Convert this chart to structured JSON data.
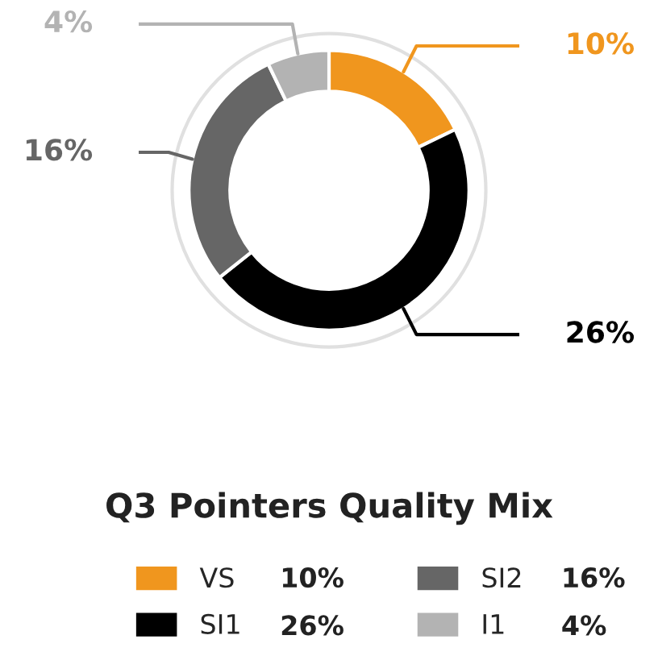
{
  "chart_data": {
    "type": "donut",
    "title": "Q3 Pointers Quality Mix",
    "categories": [
      "VS",
      "SI1",
      "SI2",
      "I1"
    ],
    "values": [
      10,
      26,
      16,
      4
    ],
    "value_labels": [
      "10%",
      "26%",
      "16%",
      "4%"
    ],
    "colors": [
      "#f0961e",
      "#000000",
      "#666666",
      "#b3b3b3"
    ],
    "legend": "bottom"
  }
}
